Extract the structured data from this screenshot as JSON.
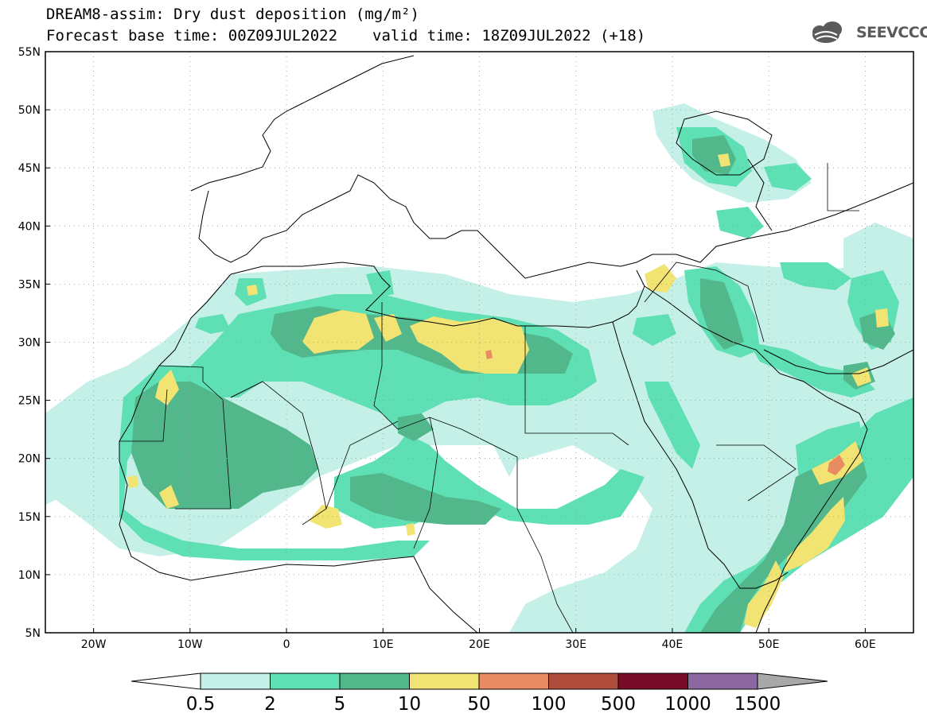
{
  "header": {
    "title_line1": "DREAM8-assim: Dry dust deposition (mg/m²)",
    "base_time": "Forecast base time: 00Z09JUL2022",
    "valid_time": "valid time: 18Z09JUL2022 (+18)"
  },
  "logo": {
    "text": "SEEVCCC",
    "icon": "cloud-logo-icon"
  },
  "map": {
    "lon_range": [
      -25,
      65
    ],
    "lat_range": [
      5,
      55
    ],
    "lon_ticks": [
      {
        "value": -20,
        "label": "20W"
      },
      {
        "value": -10,
        "label": "10W"
      },
      {
        "value": 0,
        "label": "0"
      },
      {
        "value": 10,
        "label": "10E"
      },
      {
        "value": 20,
        "label": "20E"
      },
      {
        "value": 30,
        "label": "30E"
      },
      {
        "value": 40,
        "label": "40E"
      },
      {
        "value": 50,
        "label": "50E"
      },
      {
        "value": 60,
        "label": "60E"
      }
    ],
    "lat_ticks": [
      {
        "value": 55,
        "label": "55N"
      },
      {
        "value": 50,
        "label": "50N"
      },
      {
        "value": 45,
        "label": "45N"
      },
      {
        "value": 40,
        "label": "40N"
      },
      {
        "value": 35,
        "label": "35N"
      },
      {
        "value": 30,
        "label": "30N"
      },
      {
        "value": 25,
        "label": "25N"
      },
      {
        "value": 20,
        "label": "20N"
      },
      {
        "value": 15,
        "label": "15N"
      },
      {
        "value": 10,
        "label": "10N"
      },
      {
        "value": 5,
        "label": "5N"
      }
    ],
    "grid": true
  },
  "colorbar": {
    "labels": [
      "0.5",
      "2",
      "5",
      "10",
      "50",
      "100",
      "500",
      "1000",
      "1500"
    ],
    "colors": [
      "#c4f0e8",
      "#5ee0b4",
      "#52b88c",
      "#f2e472",
      "#e88a62",
      "#b04c3c",
      "#760c28",
      "#8c68a0"
    ],
    "extend_low_color": "#ffffff",
    "extend_high_color": "#a8a8a8"
  }
}
